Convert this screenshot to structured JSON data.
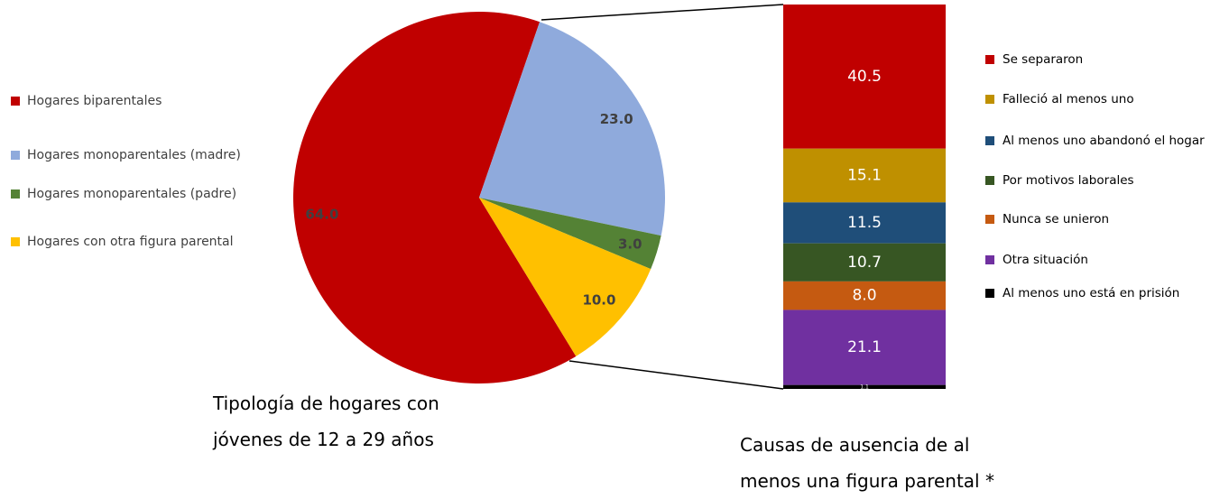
{
  "chart_data": [
    {
      "type": "pie",
      "title": "Tipología de hogares con jóvenes de 12 a 29 años",
      "categories": [
        "Hogares biparentales",
        "Hogares monoparentales (madre)",
        "Hogares monoparentales (padre)",
        "Hogares con otra figura parental"
      ],
      "values": [
        64.0,
        23.0,
        3.0,
        10.0
      ],
      "value_labels": [
        "64.0",
        "23.0",
        "3.0",
        "10.0"
      ],
      "colors": [
        "#c00000",
        "#8faadc",
        "#548235",
        "#ffc000"
      ]
    },
    {
      "type": "stacked_bar",
      "title": "Causas de ausencia de al menos una figura parental *",
      "categories": [
        "Se separaron",
        "Falleció al menos uno",
        "Al menos uno abandonó el hogar",
        "Por motivos laborales",
        "Nunca se unieron",
        "Otra situación",
        "Al menos uno está en prisión"
      ],
      "values": [
        40.5,
        15.1,
        11.5,
        10.7,
        8.0,
        21.1,
        1.1
      ],
      "value_labels": [
        "40.5",
        "15.1",
        "11.5",
        "10.7",
        "8.0",
        "21.1",
        "1.1"
      ],
      "colors": [
        "#c00000",
        "#bf9000",
        "#1f4e79",
        "#375623",
        "#c55a11",
        "#7030a0",
        "#000000"
      ]
    }
  ]
}
